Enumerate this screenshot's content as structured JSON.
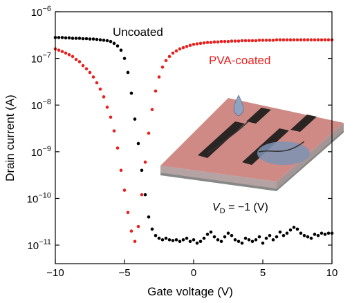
{
  "chart_data": {
    "type": "scatter",
    "x_label": "Gate voltage (V)",
    "y_label": "Drain current (A)",
    "annotation": {
      "symbol": "V",
      "subscript": "D",
      "text": " = −1 (V)"
    },
    "xlim": [
      -10,
      10
    ],
    "xticks": [
      {
        "value": -10,
        "label": "−10"
      },
      {
        "value": -5,
        "label": "−5"
      },
      0,
      5,
      10
    ],
    "ylim": [
      4e-12,
      1e-06
    ],
    "yscale": "log",
    "yticks": [
      {
        "value": 1e-11,
        "label": "10−11"
      },
      {
        "value": 1e-10,
        "label": "10−10"
      },
      {
        "value": 1e-09,
        "label": "10−9"
      },
      {
        "value": 1e-08,
        "label": "10−8"
      },
      {
        "value": 1e-07,
        "label": "10−7"
      },
      {
        "value": 1e-06,
        "label": "10−6"
      }
    ],
    "x": [
      -10,
      -9.75,
      -9.5,
      -9.25,
      -9,
      -8.75,
      -8.5,
      -8.25,
      -8,
      -7.75,
      -7.5,
      -7.25,
      -7,
      -6.75,
      -6.5,
      -6.25,
      -6,
      -5.75,
      -5.5,
      -5.25,
      -5,
      -4.75,
      -4.5,
      -4.25,
      -4,
      -3.75,
      -3.5,
      -3.25,
      -3,
      -2.75,
      -2.5,
      -2.25,
      -2,
      -1.75,
      -1.5,
      -1.25,
      -1,
      -0.75,
      -0.5,
      -0.25,
      0,
      0.25,
      0.5,
      0.75,
      1,
      1.25,
      1.5,
      1.75,
      2,
      2.25,
      2.5,
      2.75,
      3,
      3.25,
      3.5,
      3.75,
      4,
      4.25,
      4.5,
      4.75,
      5,
      5.25,
      5.5,
      5.75,
      6,
      6.25,
      6.5,
      6.75,
      7,
      7.25,
      7.5,
      7.75,
      8,
      8.25,
      8.5,
      8.75,
      9,
      9.25,
      9.5,
      9.75,
      10
    ],
    "series": [
      {
        "name": "Uncoated",
        "color": "#000000",
        "values": [
          2.8e-07,
          2.8e-07,
          2.8e-07,
          2.75e-07,
          2.75e-07,
          2.7e-07,
          2.7e-07,
          2.7e-07,
          2.65e-07,
          2.65e-07,
          2.6e-07,
          2.6e-07,
          2.55e-07,
          2.5e-07,
          2.45e-07,
          2.4e-07,
          2.3e-07,
          2.1e-07,
          1.85e-07,
          1.5e-07,
          1e-07,
          5e-08,
          1.8e-08,
          5e-09,
          1.5e-09,
          4e-10,
          1.2e-10,
          4e-11,
          2.2e-11,
          1.6e-11,
          1.4e-11,
          1.3e-11,
          1.4e-11,
          1.3e-11,
          1.25e-11,
          1.3e-11,
          1.2e-11,
          1.3e-11,
          1.4e-11,
          1.2e-11,
          1.3e-11,
          1.1e-11,
          1.2e-11,
          1.4e-11,
          1.7e-11,
          1.9e-11,
          1.5e-11,
          1.3e-11,
          1.2e-11,
          1.5e-11,
          1.8e-11,
          1.6e-11,
          1.3e-11,
          1.2e-11,
          1.1e-11,
          1.4e-11,
          1.3e-11,
          1.2e-11,
          1.3e-11,
          1.5e-11,
          1.1e-11,
          1.4e-11,
          1.6e-11,
          1.3e-11,
          1.5e-11,
          1.9e-11,
          1.6e-11,
          1.8e-11,
          2.1e-11,
          2.4e-11,
          2.2e-11,
          1.8e-11,
          1.6e-11,
          1.5e-11,
          1.4e-11,
          1.7e-11,
          1.6e-11,
          1.8e-11,
          1.7e-11,
          1.8e-11,
          1.8e-11
        ]
      },
      {
        "name": "PVA-coated",
        "color": "#e8201e",
        "values": [
          1.6e-07,
          1.5e-07,
          1.4e-07,
          1.3e-07,
          1.2e-07,
          1.1e-07,
          9.5e-08,
          8.5e-08,
          7e-08,
          6e-08,
          5e-08,
          4e-08,
          3e-08,
          2.2e-08,
          1.5e-08,
          9e-09,
          5.5e-09,
          2.8e-09,
          1.2e-09,
          4e-10,
          1.5e-10,
          5e-11,
          2e-11,
          1.2e-11,
          2.5e-11,
          1.2e-10,
          6e-10,
          2.5e-09,
          8e-09,
          2e-08,
          4e-08,
          6.5e-08,
          9e-08,
          1.1e-07,
          1.3e-07,
          1.45e-07,
          1.6e-07,
          1.7e-07,
          1.8e-07,
          1.9e-07,
          2e-07,
          2.05e-07,
          2.1e-07,
          2.15e-07,
          2.2e-07,
          2.2e-07,
          2.25e-07,
          2.25e-07,
          2.3e-07,
          2.3e-07,
          2.3e-07,
          2.35e-07,
          2.35e-07,
          2.35e-07,
          2.4e-07,
          2.4e-07,
          2.4e-07,
          2.4e-07,
          2.4e-07,
          2.45e-07,
          2.45e-07,
          2.45e-07,
          2.45e-07,
          2.45e-07,
          2.5e-07,
          2.5e-07,
          2.5e-07,
          2.5e-07,
          2.5e-07,
          2.5e-07,
          2.5e-07,
          2.5e-07,
          2.5e-07,
          2.5e-07,
          2.5e-07,
          2.5e-07,
          2.5e-07,
          2.5e-07,
          2.5e-07,
          2.5e-07,
          2.5e-07
        ]
      }
    ]
  }
}
